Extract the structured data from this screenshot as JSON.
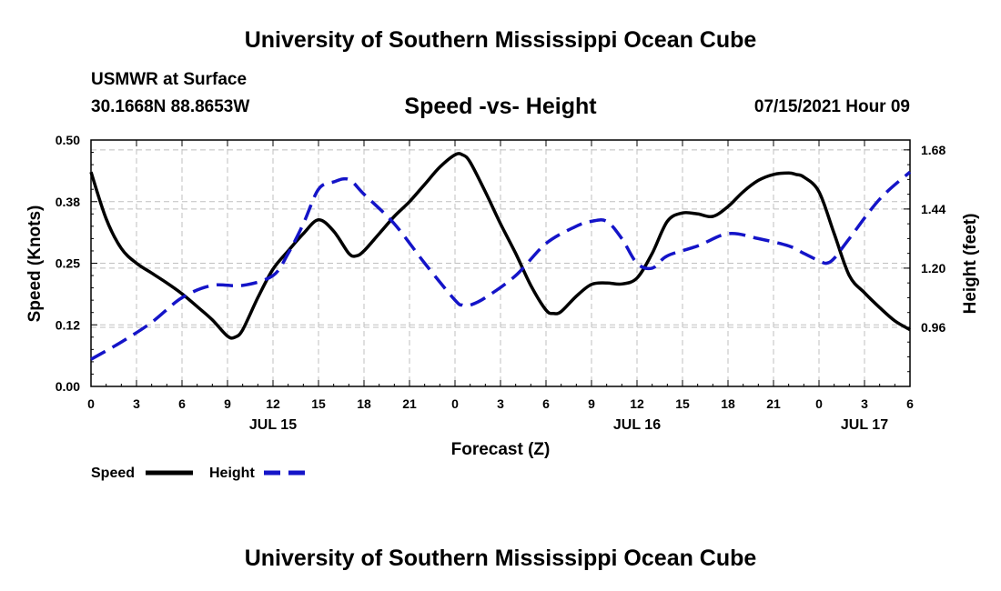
{
  "header": {
    "title": "University of Southern Mississippi Ocean Cube",
    "footer": "University of Southern Mississippi Ocean Cube",
    "station": "USMWR at Surface",
    "coords": "30.1668N  88.8653W",
    "datetime": "07/15/2021 Hour 09"
  },
  "colors": {
    "speed": "#000000",
    "height": "#1414c8",
    "grid": "#bfbfbf"
  },
  "chart_data": {
    "type": "line",
    "title": "Speed -vs- Height",
    "xlabel": "Forecast (Z)",
    "ylabel": "Speed (Knots)",
    "y2label": "Height (feet)",
    "xlim": [
      0,
      54
    ],
    "ylim": [
      0,
      0.5
    ],
    "y2lim": [
      0.72,
      1.72
    ],
    "x_ticks": [
      0,
      3,
      6,
      9,
      12,
      15,
      18,
      21,
      24,
      27,
      30,
      33,
      36,
      39,
      42,
      45,
      48,
      51,
      54
    ],
    "x_tick_labels": [
      "0",
      "3",
      "6",
      "9",
      "12",
      "15",
      "18",
      "21",
      "0",
      "3",
      "6",
      "9",
      "12",
      "15",
      "18",
      "21",
      "0",
      "3",
      "6"
    ],
    "y_ticks": [
      0,
      0.125,
      0.25,
      0.375,
      0.5
    ],
    "y_tick_labels": [
      "0.00",
      "0.12",
      "0.25",
      "0.38",
      "0.50"
    ],
    "y2_ticks": [
      0.96,
      1.2,
      1.44,
      1.68
    ],
    "y2_tick_labels": [
      "0.96",
      "1.20",
      "1.44",
      "1.68"
    ],
    "day_labels": [
      {
        "x": 12,
        "label": "JUL 15"
      },
      {
        "x": 36,
        "label": "JUL 16"
      },
      {
        "x": 51,
        "label": "JUL 17"
      }
    ],
    "legend": [
      {
        "name": "Speed",
        "style": "solid"
      },
      {
        "name": "Height",
        "style": "dashed"
      }
    ],
    "series": [
      {
        "name": "Speed",
        "axis": "left",
        "style": "solid",
        "x": [
          0,
          1,
          2,
          3,
          4,
          5,
          6,
          7,
          8,
          9,
          9.5,
          10,
          11,
          12,
          13,
          14,
          15,
          16,
          17,
          17.5,
          18,
          19,
          20,
          21,
          22,
          23,
          24,
          24.5,
          25,
          26,
          27,
          28,
          29,
          30,
          30.5,
          31,
          32,
          33,
          34,
          35,
          36,
          37,
          38,
          39,
          40,
          41,
          42,
          43,
          44,
          45,
          46,
          46.5,
          47,
          48,
          49,
          50,
          51,
          52,
          53,
          54
        ],
        "y": [
          0.435,
          0.34,
          0.28,
          0.25,
          0.23,
          0.21,
          0.188,
          0.162,
          0.135,
          0.102,
          0.1,
          0.115,
          0.18,
          0.238,
          0.275,
          0.31,
          0.338,
          0.315,
          0.27,
          0.265,
          0.275,
          0.31,
          0.345,
          0.375,
          0.41,
          0.445,
          0.47,
          0.47,
          0.455,
          0.395,
          0.33,
          0.27,
          0.205,
          0.155,
          0.148,
          0.152,
          0.183,
          0.207,
          0.21,
          0.208,
          0.22,
          0.27,
          0.335,
          0.352,
          0.35,
          0.345,
          0.365,
          0.395,
          0.418,
          0.43,
          0.433,
          0.43,
          0.425,
          0.395,
          0.31,
          0.225,
          0.19,
          0.16,
          0.133,
          0.115
        ]
      },
      {
        "name": "Height",
        "axis": "right",
        "style": "dashed",
        "x": [
          0,
          2,
          4,
          6,
          8,
          10,
          12,
          13,
          14,
          15,
          16,
          17,
          18,
          20,
          22,
          24,
          24.5,
          25,
          26,
          28,
          30,
          32,
          33,
          34,
          35,
          36,
          37,
          38,
          40,
          42,
          44,
          46,
          47,
          48,
          48.5,
          49,
          50,
          52,
          54
        ],
        "y": [
          0.83,
          0.9,
          0.98,
          1.08,
          1.13,
          1.13,
          1.17,
          1.26,
          1.38,
          1.52,
          1.55,
          1.56,
          1.5,
          1.38,
          1.22,
          1.07,
          1.05,
          1.05,
          1.08,
          1.17,
          1.3,
          1.37,
          1.39,
          1.39,
          1.32,
          1.22,
          1.2,
          1.25,
          1.29,
          1.34,
          1.32,
          1.29,
          1.26,
          1.23,
          1.22,
          1.24,
          1.32,
          1.48,
          1.59
        ]
      }
    ]
  }
}
